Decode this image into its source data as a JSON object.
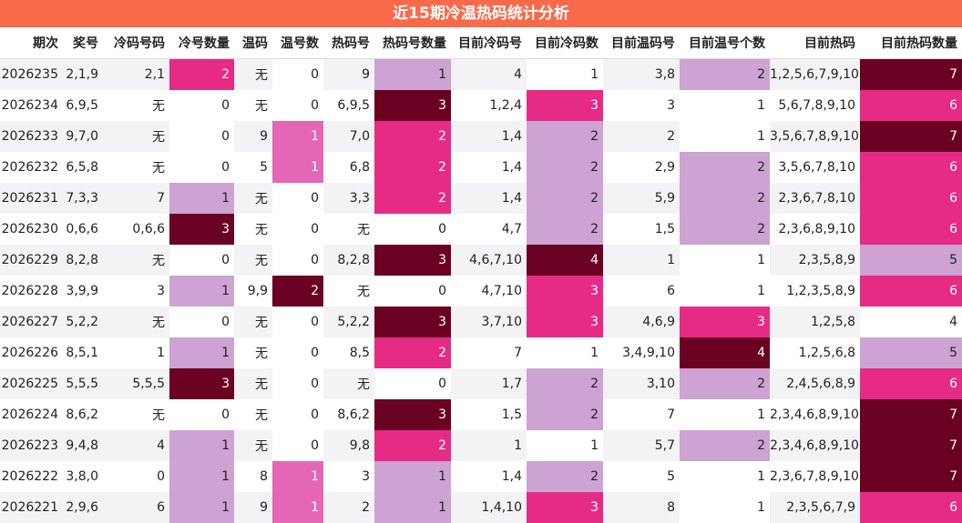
{
  "title": "近15期冷温热码统计分析",
  "headers": [
    "期次",
    "奖号",
    "冷码号码",
    "冷号数量",
    "温码",
    "温号数",
    "热码号",
    "热码号数量",
    "目前冷码号",
    "目前冷码数",
    "目前温码号",
    "目前温号个数",
    "目前热码",
    "目前热码数量"
  ],
  "rows": [
    [
      "2026235",
      "2,1,9",
      "2,1",
      "2",
      "无",
      "0",
      "9",
      "1",
      "4",
      "1",
      "3,8",
      "2",
      "1,2,5,6,7,9,10",
      "7"
    ],
    [
      "2026234",
      "6,9,5",
      "无",
      "0",
      "无",
      "0",
      "6,9,5",
      "3",
      "1,2,4",
      "3",
      "3",
      "1",
      "5,6,7,8,9,10",
      "6"
    ],
    [
      "2026233",
      "9,7,0",
      "无",
      "0",
      "9",
      "1",
      "7,0",
      "2",
      "1,4",
      "2",
      "2",
      "1",
      "3,5,6,7,8,9,10",
      "7"
    ],
    [
      "2026232",
      "6,5,8",
      "无",
      "0",
      "5",
      "1",
      "6,8",
      "2",
      "1,4",
      "2",
      "2,9",
      "2",
      "3,5,6,7,8,10",
      "6"
    ],
    [
      "2026231",
      "7,3,3",
      "7",
      "1",
      "无",
      "0",
      "3,3",
      "2",
      "1,4",
      "2",
      "5,9",
      "2",
      "2,3,6,7,8,10",
      "6"
    ],
    [
      "2026230",
      "0,6,6",
      "0,6,6",
      "3",
      "无",
      "0",
      "无",
      "0",
      "4,7",
      "2",
      "1,5",
      "2",
      "2,3,6,8,9,10",
      "6"
    ],
    [
      "2026229",
      "8,2,8",
      "无",
      "0",
      "无",
      "0",
      "8,2,8",
      "3",
      "4,6,7,10",
      "4",
      "1",
      "1",
      "2,3,5,8,9",
      "5"
    ],
    [
      "2026228",
      "3,9,9",
      "3",
      "1",
      "9,9",
      "2",
      "无",
      "0",
      "4,7,10",
      "3",
      "6",
      "1",
      "1,2,3,5,8,9",
      "6"
    ],
    [
      "2026227",
      "5,2,2",
      "无",
      "0",
      "无",
      "0",
      "5,2,2",
      "3",
      "3,7,10",
      "3",
      "4,6,9",
      "3",
      "1,2,5,8",
      "4"
    ],
    [
      "2026226",
      "8,5,1",
      "1",
      "1",
      "无",
      "0",
      "8,5",
      "2",
      "7",
      "1",
      "3,4,9,10",
      "4",
      "1,2,5,6,8",
      "5"
    ],
    [
      "2026225",
      "5,5,5",
      "5,5,5",
      "3",
      "无",
      "0",
      "无",
      "0",
      "1,7",
      "2",
      "3,10",
      "2",
      "2,4,5,6,8,9",
      "6"
    ],
    [
      "2026224",
      "8,6,2",
      "无",
      "0",
      "无",
      "0",
      "8,6,2",
      "3",
      "1,5",
      "2",
      "7",
      "1",
      "2,3,4,6,8,9,10",
      "7"
    ],
    [
      "2026223",
      "9,4,8",
      "4",
      "1",
      "无",
      "0",
      "9,8",
      "2",
      "1",
      "1",
      "5,7",
      "2",
      "2,3,4,6,8,9,10",
      "7"
    ],
    [
      "2026222",
      "3,8,0",
      "0",
      "1",
      "8",
      "1",
      "3",
      "1",
      "1,4",
      "2",
      "5",
      "1",
      "2,3,6,7,8,9,10",
      "7"
    ],
    [
      "2026221",
      "2,9,6",
      "6",
      "1",
      "9",
      "1",
      "2",
      "1",
      "1,4,10",
      "3",
      "8",
      "1",
      "2,3,5,6,7,9",
      "6"
    ]
  ],
  "heat_colors": {
    "low": "#f3f1f6",
    "light": "#cda3d3",
    "medium": "#e62b85",
    "dark": "#6a0022",
    "warm_one": "#e367b6",
    "title_bg": "#f96a4b"
  },
  "heat_classes": {
    "cold_count": {
      "0": "hw",
      "1": "h1",
      "2": "h2",
      "3": "h3"
    },
    "warm_count": {
      "0": "hw",
      "1": "hm",
      "2": "h3"
    },
    "hot_count": {
      "0": "hw",
      "1": "h1",
      "2": "h2",
      "3": "h3"
    },
    "cur_cold_count": {
      "1": "hw",
      "2": "h1",
      "3": "h2",
      "4": "h3"
    },
    "cur_warm_count": {
      "1": "hw",
      "2": "h1",
      "3": "h2",
      "4": "h3"
    },
    "cur_hot_count": {
      "4": "hw",
      "5": "h1",
      "6": "h2",
      "7": "h3"
    }
  }
}
